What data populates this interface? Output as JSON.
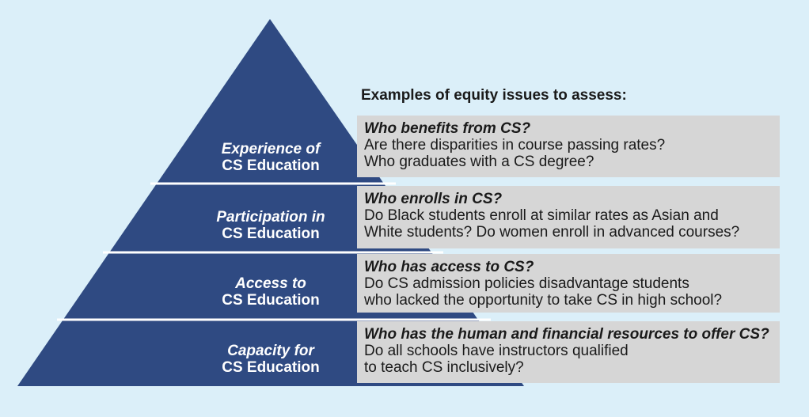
{
  "heading": "Examples of equity issues to assess:",
  "colors": {
    "background": "#dbeff9",
    "pyramid": "#2f4a82",
    "divider": "#ffffff",
    "box": "#d6d6d6"
  },
  "tiers": [
    {
      "label_line1": "Experience of",
      "label_line2": "CS Education",
      "question": "Who benefits from CS?",
      "text_line1": "Are there disparities in course passing rates?",
      "text_line2": "Who graduates with a CS degree?"
    },
    {
      "label_line1": "Participation in",
      "label_line2": "CS Education",
      "question": "Who enrolls in CS?",
      "text_line1": "Do Black students enroll at similar rates as Asian and",
      "text_line2": "White students? Do women enroll in advanced courses?"
    },
    {
      "label_line1": "Access to",
      "label_line2": "CS Education",
      "question": "Who has access to CS?",
      "text_line1": "Do CS admission policies disadvantage students",
      "text_line2": "who lacked the opportunity to take CS in high school?"
    },
    {
      "label_line1": "Capacity for",
      "label_line2": "CS Education",
      "question": "Who has the human and financial resources to offer CS?",
      "text_line1": "Do all schools have instructors qualified",
      "text_line2": "to teach CS inclusively?"
    }
  ]
}
